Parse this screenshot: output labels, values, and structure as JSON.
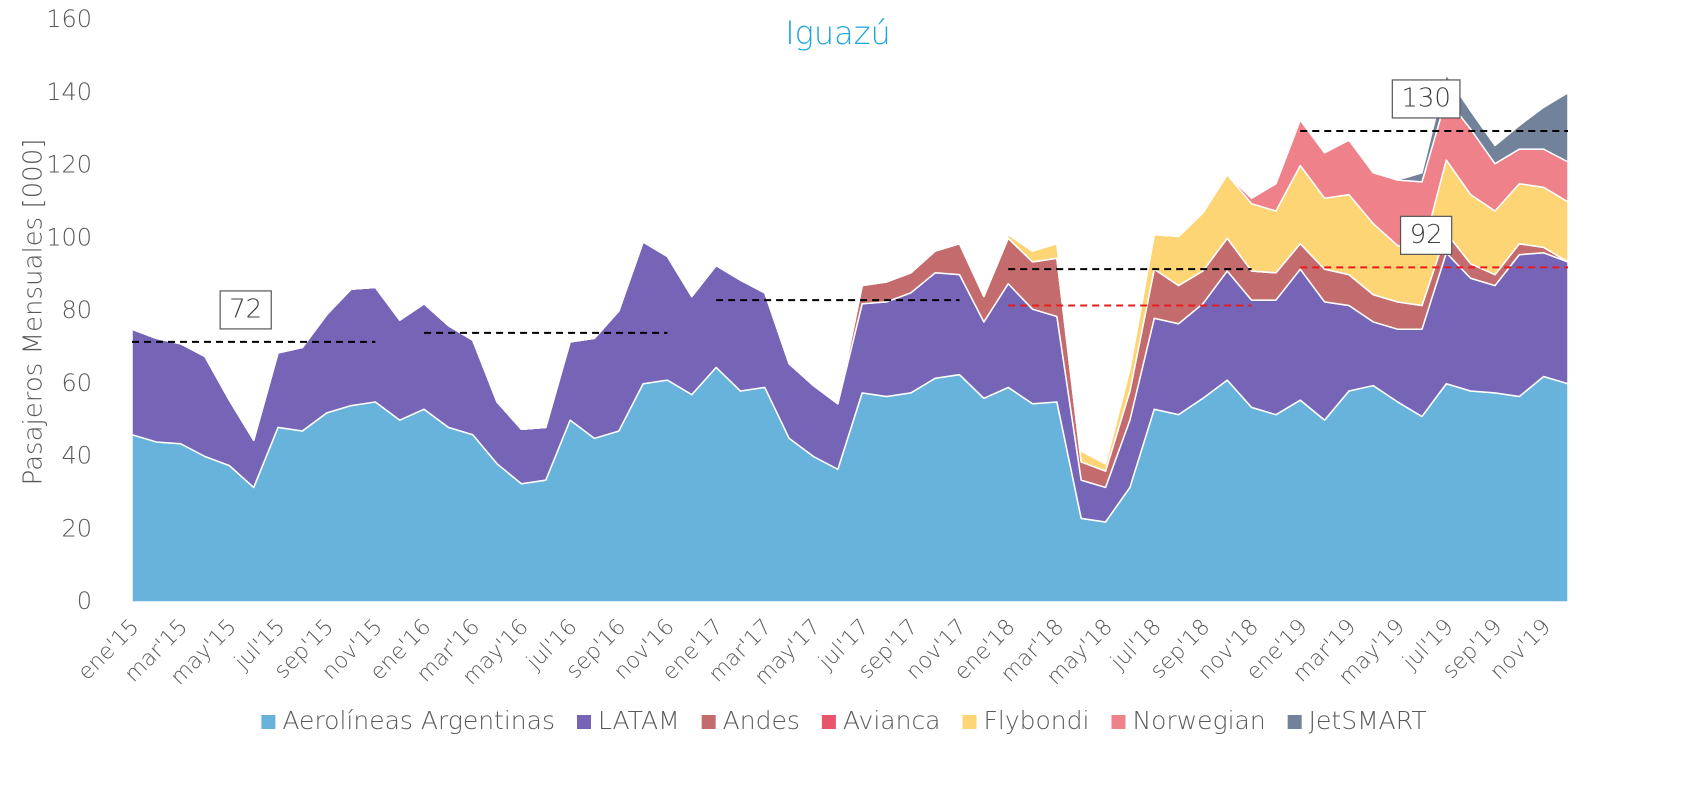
{
  "chart_data": {
    "type": "stacked_area",
    "title": "Iguazú",
    "ylabel": "Pasajeros Mensuales [000]",
    "ylim": [
      0,
      160
    ],
    "yticks": [
      0,
      20,
      40,
      60,
      80,
      100,
      120,
      140,
      160
    ],
    "categories": [
      "ene'15",
      null,
      "mar'15",
      null,
      "may'15",
      null,
      "jul'15",
      null,
      "sep'15",
      null,
      "nov'15",
      null,
      "ene'16",
      null,
      "mar'16",
      null,
      "may'16",
      null,
      "jul'16",
      null,
      "sep'16",
      null,
      "nov'16",
      null,
      "ene'17",
      null,
      "mar'17",
      null,
      "may'17",
      null,
      "jul'17",
      null,
      "sep'17",
      null,
      "nov'17",
      null,
      "ene'18",
      null,
      "mar'18",
      null,
      "may'18",
      null,
      "jul'18",
      null,
      "sep'18",
      null,
      "nov'18",
      null,
      "ene'19",
      null,
      "mar'19",
      null,
      "may'19",
      null,
      "jul'19",
      null,
      "sep'19",
      null,
      "nov'19",
      null
    ],
    "series": [
      {
        "name": "Aerolíneas Argentinas",
        "color": "#67b3dc",
        "values": [
          46,
          44,
          43.5,
          40,
          37.5,
          31.5,
          48,
          47,
          52,
          54,
          55,
          50,
          53,
          48,
          46,
          38,
          32.5,
          33.5,
          50,
          45,
          47,
          60,
          61,
          57,
          64.5,
          58,
          59,
          45,
          40,
          36.5,
          57.5,
          56.5,
          57.5,
          61.5,
          62.5,
          56,
          59,
          54.5,
          55,
          23,
          22,
          31.5,
          53,
          51.5,
          56,
          61,
          53.5,
          51.5,
          55.5,
          50,
          58,
          59.5,
          55,
          51,
          60,
          58,
          57.5,
          56.5,
          62,
          60
        ]
      },
      {
        "name": "LATAM",
        "color": "#7665b7",
        "values": [
          29,
          28.5,
          27.5,
          27.5,
          18,
          13,
          20.5,
          23,
          27,
          32,
          31.5,
          27.5,
          29,
          28,
          26,
          17,
          15,
          14.5,
          21.5,
          27.5,
          33,
          39,
          34,
          27,
          28,
          30.5,
          26,
          20.5,
          19.5,
          18,
          24.5,
          26,
          27.5,
          29,
          27.5,
          21,
          28.5,
          26,
          23.5,
          10.5,
          9.5,
          18.5,
          25,
          25,
          26,
          30,
          29.5,
          31.5,
          36,
          32.5,
          23.5,
          17.5,
          20,
          24,
          36,
          31,
          29.5,
          39,
          34,
          33.5
        ]
      },
      {
        "name": "Andes",
        "color": "#c46b6e",
        "values": [
          0,
          0,
          0,
          0,
          0,
          0,
          0,
          0,
          0,
          0,
          0,
          0,
          0,
          0,
          0,
          0,
          0,
          0,
          0,
          0,
          0,
          0,
          0,
          0,
          0,
          0,
          0,
          0,
          0,
          0,
          5,
          5.5,
          5.5,
          6,
          8.5,
          7,
          12.5,
          13,
          16,
          5,
          4.5,
          8,
          13.5,
          10.5,
          9,
          9,
          8,
          7.5,
          7,
          9,
          8.5,
          7.5,
          7.5,
          6.5,
          5.5,
          4,
          3,
          3,
          1.5,
          0
        ]
      },
      {
        "name": "Avianca",
        "color": "#e8546a",
        "values": [
          0,
          0,
          0,
          0,
          0,
          0,
          0,
          0,
          0,
          0,
          0,
          0,
          0,
          0,
          0,
          0,
          0,
          0,
          0,
          0,
          0,
          0,
          0,
          0,
          0,
          0,
          0,
          0,
          0,
          0,
          0,
          0,
          0,
          0,
          0,
          0,
          0,
          0,
          0,
          0,
          0,
          0,
          0,
          0,
          0,
          0,
          0,
          0,
          0,
          0,
          0,
          0,
          0,
          0,
          0,
          0,
          0,
          0,
          0,
          0
        ]
      },
      {
        "name": "Flybondi",
        "color": "#fdd574",
        "values": [
          0,
          0,
          0,
          0,
          0,
          0,
          0,
          0,
          0,
          0,
          0,
          0,
          0,
          0,
          0,
          0,
          0,
          0,
          0,
          0,
          0,
          0,
          0,
          0,
          0,
          0,
          0,
          0,
          0,
          0,
          0,
          0,
          0,
          0,
          0,
          0,
          1,
          3,
          4,
          3,
          2,
          6,
          9.5,
          13.5,
          16,
          17.5,
          18.5,
          17,
          21.5,
          19.5,
          22,
          19.5,
          15.5,
          14.5,
          20,
          19,
          17.5,
          16.5,
          16.5,
          16.5
        ]
      },
      {
        "name": "Norwegian",
        "color": "#ee8189",
        "values": [
          0,
          0,
          0,
          0,
          0,
          0,
          0,
          0,
          0,
          0,
          0,
          0,
          0,
          0,
          0,
          0,
          0,
          0,
          0,
          0,
          0,
          0,
          0,
          0,
          0,
          0,
          0,
          0,
          0,
          0,
          0,
          0,
          0,
          0,
          0,
          0,
          0,
          0,
          0,
          0,
          0,
          0,
          0,
          0,
          0,
          0,
          1.5,
          7.5,
          12.5,
          12.5,
          15,
          14,
          18,
          19.5,
          17,
          18,
          13,
          9.5,
          10.5,
          11
        ]
      },
      {
        "name": "JetSMART",
        "color": "#71829a",
        "values": [
          0,
          0,
          0,
          0,
          0,
          0,
          0,
          0,
          0,
          0,
          0,
          0,
          0,
          0,
          0,
          0,
          0,
          0,
          0,
          0,
          0,
          0,
          0,
          0,
          0,
          0,
          0,
          0,
          0,
          0,
          0,
          0,
          0,
          0,
          0,
          0,
          0,
          0,
          0,
          0,
          0,
          0,
          0,
          0,
          0,
          0,
          0,
          0,
          0,
          0,
          0,
          0,
          0,
          2.5,
          6.5,
          5,
          5,
          6.5,
          11.5,
          19
        ]
      }
    ],
    "reference_lines": [
      {
        "color": "#000000",
        "label": "72",
        "values": [
          71.5,
          71.5,
          71.5,
          71.5,
          71.5,
          71.5,
          71.5,
          71.5,
          71.5,
          71.5,
          71.5,
          null,
          null,
          null,
          null,
          null,
          null,
          null,
          null,
          null,
          null,
          null,
          null,
          null,
          null,
          null,
          null,
          null,
          null,
          null,
          null,
          null,
          null,
          null,
          null,
          null,
          null,
          null,
          null,
          null,
          null,
          null,
          null,
          null,
          null,
          null,
          null,
          null,
          null,
          null,
          null,
          null,
          null,
          null,
          null,
          null,
          null,
          null,
          null,
          null
        ]
      },
      {
        "color": "#000000",
        "values": [
          null,
          null,
          null,
          null,
          null,
          null,
          null,
          null,
          null,
          null,
          null,
          null,
          74,
          74,
          74,
          74,
          74,
          74,
          74,
          74,
          74,
          74,
          74,
          null,
          null,
          null,
          null,
          null,
          null,
          null,
          null,
          null,
          null,
          null,
          null,
          null,
          null,
          null,
          null,
          null,
          null,
          null,
          null,
          null,
          null,
          null,
          null,
          null,
          null,
          null,
          null,
          null,
          null,
          null,
          null,
          null,
          null,
          null,
          null,
          null
        ]
      },
      {
        "color": "#000000",
        "values": [
          null,
          null,
          null,
          null,
          null,
          null,
          null,
          null,
          null,
          null,
          null,
          null,
          null,
          null,
          null,
          null,
          null,
          null,
          null,
          null,
          null,
          null,
          null,
          null,
          83,
          83,
          83,
          83,
          83,
          83,
          83,
          83,
          83,
          83,
          83,
          null,
          null,
          null,
          null,
          null,
          null,
          null,
          null,
          null,
          null,
          null,
          null,
          null,
          null,
          null,
          null,
          null,
          null,
          null,
          null,
          null,
          null,
          null,
          null,
          null
        ]
      },
      {
        "color": "#000000",
        "values": [
          null,
          null,
          null,
          null,
          null,
          null,
          null,
          null,
          null,
          null,
          null,
          null,
          null,
          null,
          null,
          null,
          null,
          null,
          null,
          null,
          null,
          null,
          null,
          null,
          null,
          null,
          null,
          null,
          null,
          null,
          null,
          null,
          null,
          null,
          null,
          null,
          91.5,
          91.5,
          91.5,
          91.5,
          91.5,
          91.5,
          91.5,
          91.5,
          91.5,
          91.5,
          91.5,
          null,
          null,
          null,
          null,
          null,
          null,
          null,
          null,
          null,
          null,
          null,
          null,
          null
        ]
      },
      {
        "color": "#e81c1c",
        "values": [
          null,
          null,
          null,
          null,
          null,
          null,
          null,
          null,
          null,
          null,
          null,
          null,
          null,
          null,
          null,
          null,
          null,
          null,
          null,
          null,
          null,
          null,
          null,
          null,
          null,
          null,
          null,
          null,
          null,
          null,
          null,
          null,
          null,
          null,
          null,
          null,
          81.5,
          81.5,
          81.5,
          81.5,
          81.5,
          81.5,
          81.5,
          81.5,
          81.5,
          81.5,
          81.5,
          null,
          null,
          null,
          null,
          null,
          null,
          null,
          null,
          null,
          null,
          null,
          null,
          null
        ]
      },
      {
        "color": "#000000",
        "label": "130",
        "values": [
          null,
          null,
          null,
          null,
          null,
          null,
          null,
          null,
          null,
          null,
          null,
          null,
          null,
          null,
          null,
          null,
          null,
          null,
          null,
          null,
          null,
          null,
          null,
          null,
          null,
          null,
          null,
          null,
          null,
          null,
          null,
          null,
          null,
          null,
          null,
          null,
          null,
          null,
          null,
          null,
          null,
          null,
          null,
          null,
          null,
          null,
          null,
          null,
          129.5,
          129.5,
          129.5,
          129.5,
          129.5,
          129.5,
          129.5,
          129.5,
          129.5,
          129.5,
          129.5,
          129.5
        ]
      },
      {
        "color": "#e81c1c",
        "label": "92",
        "values": [
          null,
          null,
          null,
          null,
          null,
          null,
          null,
          null,
          null,
          null,
          null,
          null,
          null,
          null,
          null,
          null,
          null,
          null,
          null,
          null,
          null,
          null,
          null,
          null,
          null,
          null,
          null,
          null,
          null,
          null,
          null,
          null,
          null,
          null,
          null,
          null,
          null,
          null,
          null,
          null,
          null,
          null,
          null,
          null,
          null,
          null,
          null,
          null,
          92,
          92,
          92,
          92,
          92,
          92,
          92,
          92,
          92,
          92,
          92,
          92
        ]
      }
    ]
  }
}
